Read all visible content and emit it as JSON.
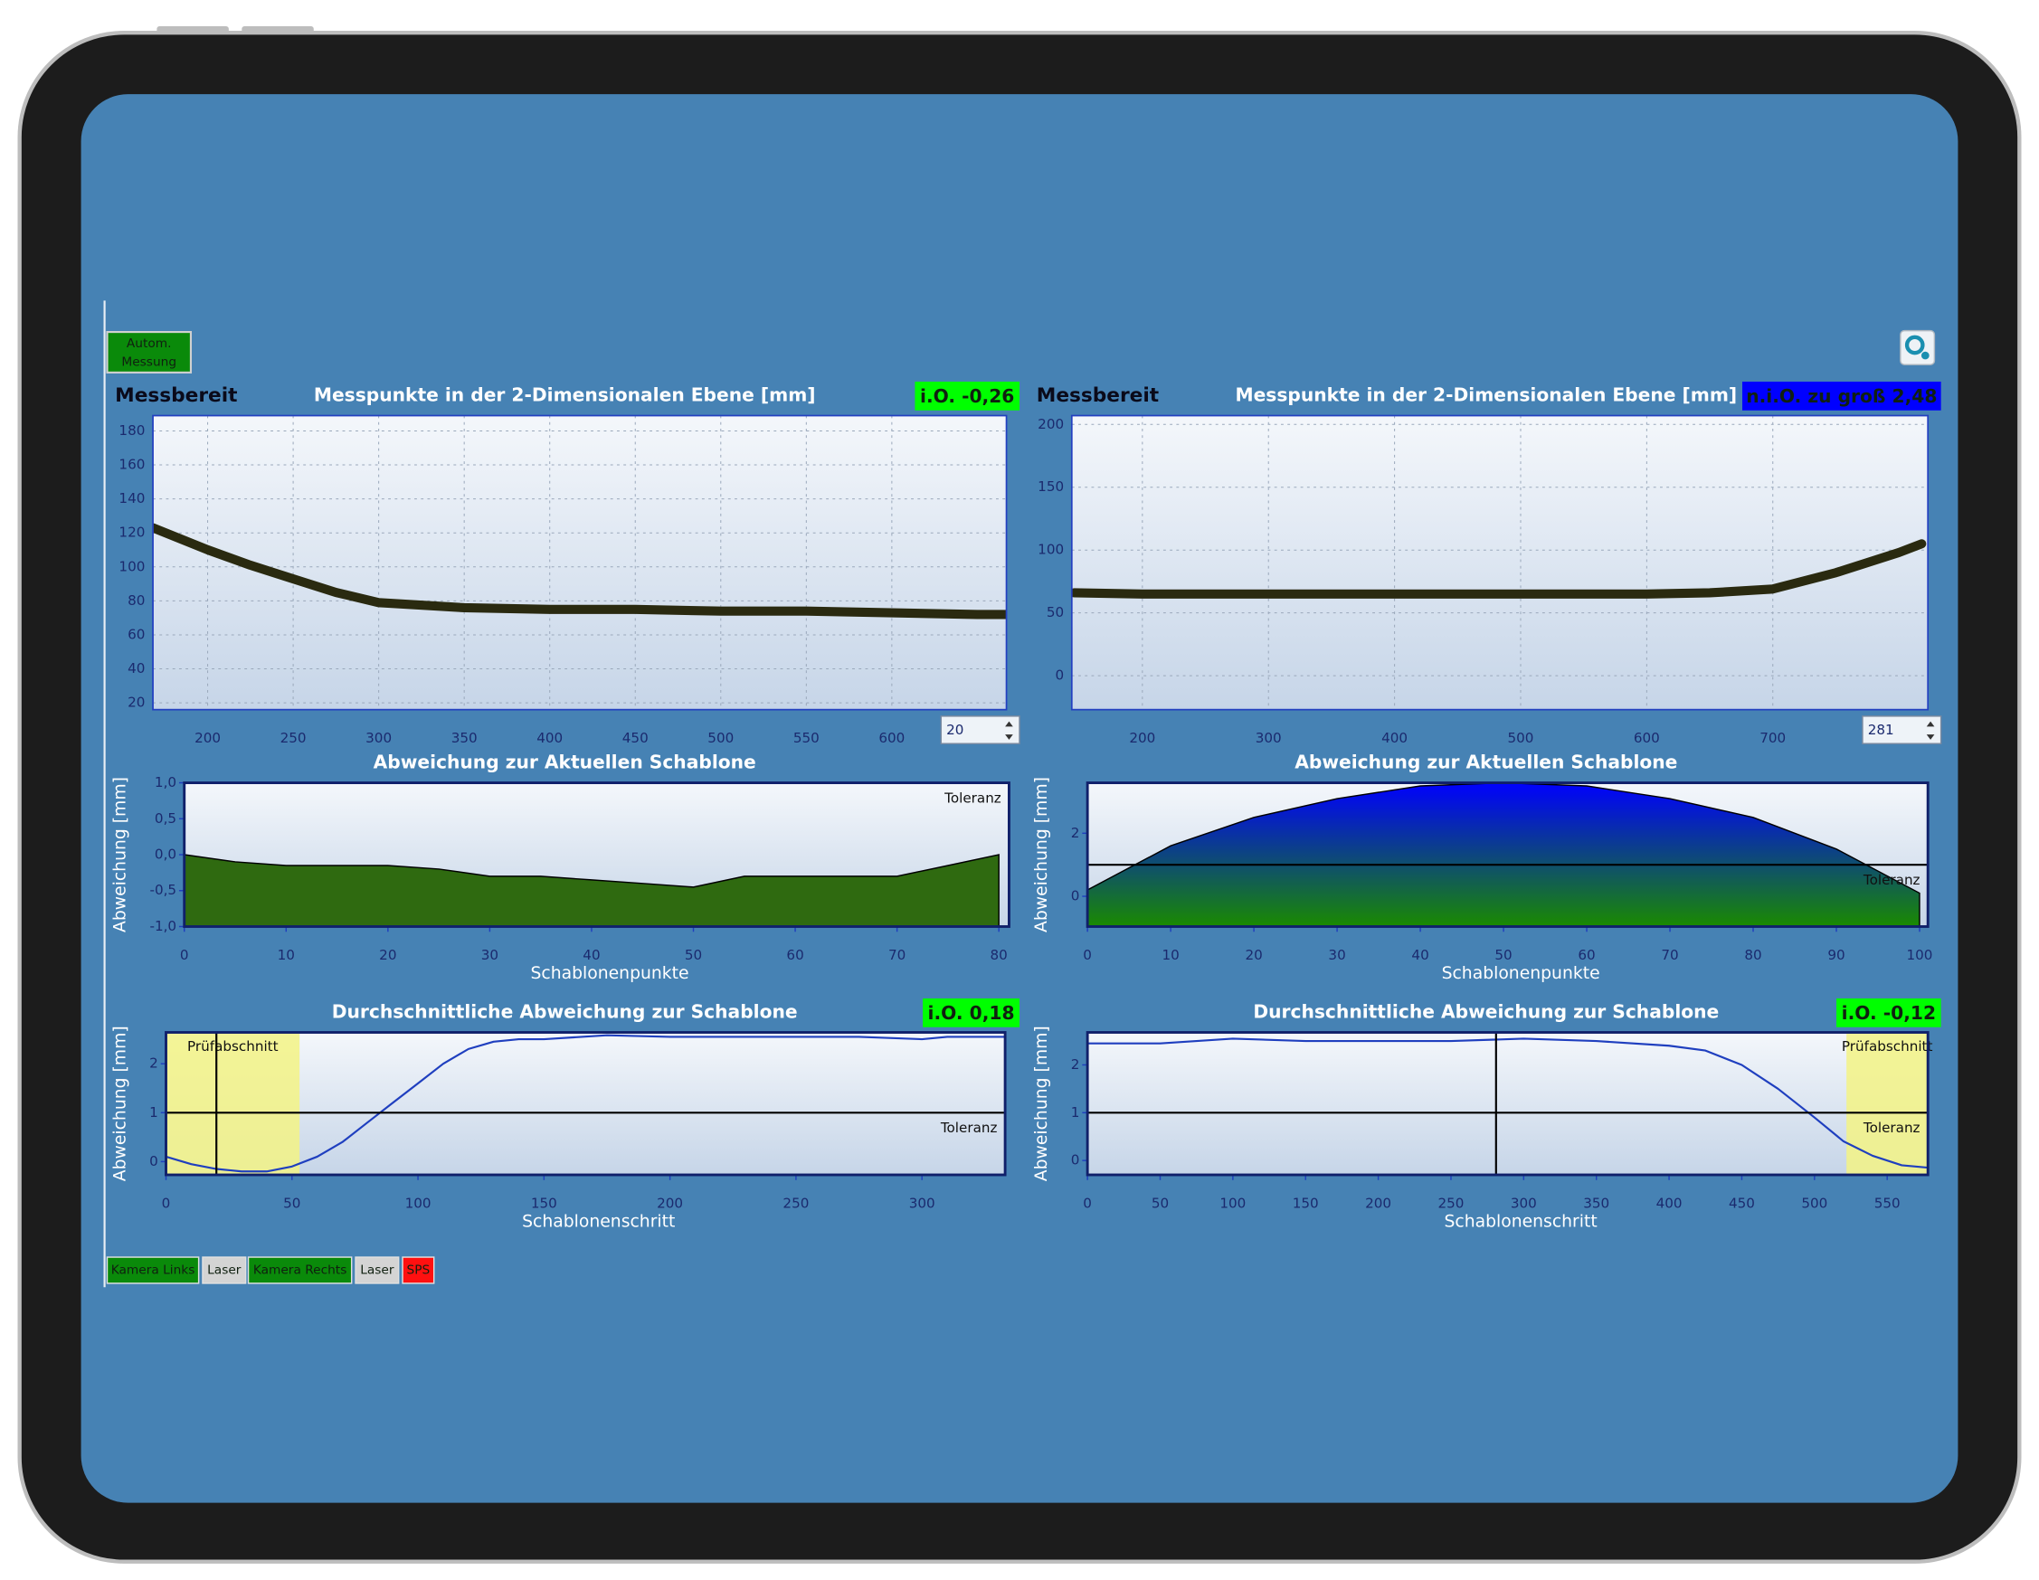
{
  "button": [
    "Autom.",
    "Messung"
  ],
  "panels": [
    {
      "status": "Messbereit",
      "position": 20,
      "top": {
        "type": "line",
        "title": "Messpunkte in der 2-Dimensionalen Ebene [mm]",
        "badge": {
          "text": "i.O. -0,26",
          "color": "#00ff00"
        },
        "xlim": [
          168,
          667
        ],
        "xticks": [
          200,
          250,
          300,
          350,
          400,
          450,
          500,
          550,
          600
        ],
        "ylim": [
          16,
          189
        ],
        "yticks": [
          20,
          40,
          60,
          80,
          100,
          120,
          140,
          160,
          180
        ],
        "grid": true,
        "x": [
          168,
          200,
          225,
          250,
          275,
          300,
          350,
          400,
          450,
          500,
          550,
          600,
          650,
          667
        ],
        "values": [
          123,
          110,
          101,
          93,
          85,
          79,
          76,
          75,
          75,
          74,
          74,
          73,
          72,
          72
        ],
        "color": "#2a2a10"
      },
      "middle": {
        "type": "area",
        "title": "Abweichung zur Aktuellen Schablone",
        "ylabel": "Abweichung [mm]",
        "xlabel": "Schablonenpunkte",
        "xlim": [
          0,
          81
        ],
        "xticks": [
          0,
          10,
          20,
          30,
          40,
          50,
          60,
          70,
          80
        ],
        "ylim": [
          -1.0,
          1.0
        ],
        "yticks": [
          {
            "value": 1.0,
            "label": "1,0"
          },
          {
            "value": 0.5,
            "label": "0,5"
          },
          {
            "value": 0.0,
            "label": "0,0"
          },
          {
            "value": -0.5,
            "label": "-0,5"
          },
          {
            "value": -1.0,
            "label": "-1,0"
          }
        ],
        "tolerance": 1.0,
        "tolerance_label": "Toleranz",
        "x": [
          0,
          5,
          10,
          15,
          20,
          25,
          30,
          35,
          40,
          45,
          50,
          55,
          60,
          65,
          70,
          75,
          80
        ],
        "values": [
          0.0,
          -0.1,
          -0.15,
          -0.15,
          -0.15,
          -0.2,
          -0.3,
          -0.3,
          -0.35,
          -0.4,
          -0.45,
          -0.3,
          -0.3,
          -0.3,
          -0.3,
          -0.15,
          0.0
        ],
        "color": "#2f6a10"
      },
      "bottom": {
        "type": "line",
        "title": "Durchschnittliche Abweichung zur Schablone",
        "badge": {
          "text": "i.O. 0,18",
          "color": "#00ff00"
        },
        "ylabel": "Abweichung [mm]",
        "xlabel": "Schablonenschritt",
        "xlim": [
          0,
          333
        ],
        "xticks": [
          0,
          50,
          100,
          150,
          200,
          250,
          300
        ],
        "ylim": [
          -0.27,
          2.64
        ],
        "yticks": [
          0,
          1,
          2
        ],
        "tolerance": 1,
        "tolerance_label": "Toleranz",
        "check_section": {
          "label": "Prüfabschnitt",
          "range": [
            0,
            53
          ]
        },
        "x": [
          0,
          10,
          20,
          30,
          40,
          50,
          60,
          70,
          80,
          90,
          100,
          110,
          120,
          130,
          140,
          150,
          175,
          200,
          225,
          250,
          275,
          300,
          310,
          333
        ],
        "values": [
          0.1,
          -0.05,
          -0.15,
          -0.2,
          -0.2,
          -0.1,
          0.1,
          0.4,
          0.8,
          1.2,
          1.6,
          2.0,
          2.3,
          2.45,
          2.5,
          2.5,
          2.58,
          2.55,
          2.55,
          2.55,
          2.55,
          2.5,
          2.55,
          2.55
        ],
        "color": "#1f3fbf"
      }
    },
    {
      "status": "Messbereit",
      "position": 281,
      "top": {
        "type": "line",
        "title": "Messpunkte in der 2-Dimensionalen Ebene [mm]",
        "badge": {
          "text": "n.i.O. zu groß 2,48",
          "color": "#0000ff"
        },
        "xlim": [
          144,
          823
        ],
        "xticks": [
          200,
          300,
          400,
          500,
          600,
          700
        ],
        "ylim": [
          -27,
          207
        ],
        "yticks": [
          0,
          50,
          100,
          150,
          200
        ],
        "grid": true,
        "x": [
          146,
          200,
          300,
          400,
          500,
          600,
          650,
          700,
          750,
          800,
          818
        ],
        "values": [
          66,
          65,
          65,
          65,
          65,
          65,
          66,
          69,
          82,
          98,
          105
        ],
        "color": "#2a2a10"
      },
      "middle": {
        "type": "area",
        "title": "Abweichung zur Aktuellen Schablone",
        "ylabel": "Abweichung [mm]",
        "xlabel": "Schablonenpunkte",
        "xlim": [
          0,
          101
        ],
        "xticks": [
          0,
          10,
          20,
          30,
          40,
          50,
          60,
          70,
          80,
          90,
          100
        ],
        "ylim": [
          -0.96,
          3.6
        ],
        "yticks": [
          0,
          2
        ],
        "tolerance": 1,
        "tolerance_label": "Toleranz",
        "x": [
          0,
          10,
          20,
          30,
          40,
          50,
          60,
          70,
          80,
          90,
          100
        ],
        "values": [
          0.2,
          1.6,
          2.5,
          3.1,
          3.5,
          3.6,
          3.5,
          3.1,
          2.5,
          1.5,
          0.1
        ],
        "color": [
          "#0000ff",
          "#1a8a00"
        ]
      },
      "bottom": {
        "type": "line",
        "title": "Durchschnittliche Abweichung zur Schablone",
        "badge": {
          "text": "i.O. -0,12",
          "color": "#00ff00"
        },
        "ylabel": "Abweichung [mm]",
        "xlabel": "Schablonenschritt",
        "xlim": [
          0,
          578
        ],
        "xticks": [
          0,
          50,
          100,
          150,
          200,
          250,
          300,
          350,
          400,
          450,
          500,
          550
        ],
        "ylim": [
          -0.3,
          2.68
        ],
        "yticks": [
          0,
          1,
          2
        ],
        "tolerance": 1,
        "tolerance_label": "Toleranz",
        "check_section": {
          "label": "Prüfabschnitt",
          "range": [
            522,
            578
          ]
        },
        "x": [
          0,
          50,
          100,
          150,
          200,
          250,
          300,
          350,
          400,
          425,
          450,
          475,
          500,
          520,
          540,
          560,
          578
        ],
        "values": [
          2.45,
          2.45,
          2.55,
          2.5,
          2.5,
          2.5,
          2.55,
          2.5,
          2.4,
          2.3,
          2.0,
          1.5,
          0.9,
          0.4,
          0.1,
          -0.1,
          -0.15
        ],
        "color": "#1f3fbf"
      }
    }
  ],
  "status_bar": [
    {
      "text": "Kamera Links",
      "color": "#0a8a0a"
    },
    {
      "text": "Laser",
      "color": "#d4d4d4"
    },
    {
      "text": "Kamera Rechts",
      "color": "#0a8a0a"
    },
    {
      "text": "Laser",
      "color": "#d4d4d4"
    },
    {
      "text": "SPS",
      "color": "#ff1010"
    }
  ]
}
